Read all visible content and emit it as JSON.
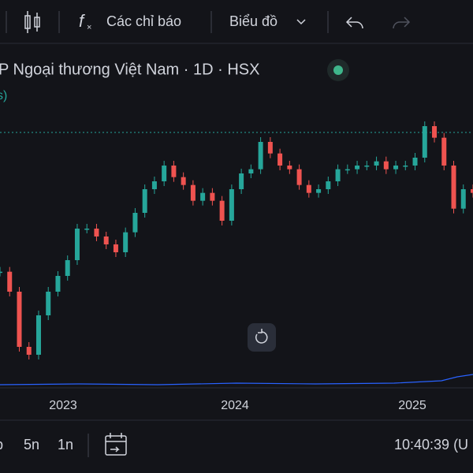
{
  "toolbar": {
    "indicators": "Các chỉ báo",
    "chart_type": "Biểu đồ"
  },
  "header": {
    "title": "P Ngoại thương Việt Nam · 1D · HSX",
    "subtitle": "s)"
  },
  "chart": {
    "type": "candlestick",
    "values": [
      72.3,
      68.5,
      58,
      56.5,
      64,
      68.5,
      71.5,
      74.5,
      80.5,
      80.5,
      79,
      77.5,
      76,
      79.8,
      83.5,
      88,
      89.5,
      92.5,
      90.3,
      88.8,
      85.8,
      87.3,
      85.8,
      82,
      88,
      91,
      91.8,
      97,
      94.8,
      92.5,
      91.8,
      88.8,
      87.3,
      88,
      89.5,
      91.8,
      91.8,
      92.5,
      92.5,
      93.3,
      91.8,
      92.5,
      92.5,
      94,
      100,
      97.8,
      92.5,
      84.3,
      88,
      87.3
    ],
    "up_color": "#26a69a",
    "down_color": "#ef5350",
    "x_labels": [
      "2023",
      "2024",
      "2025"
    ]
  },
  "footer": {
    "ranges": [
      "p",
      "5n",
      "1n"
    ],
    "time": "10:40:39 (U"
  }
}
